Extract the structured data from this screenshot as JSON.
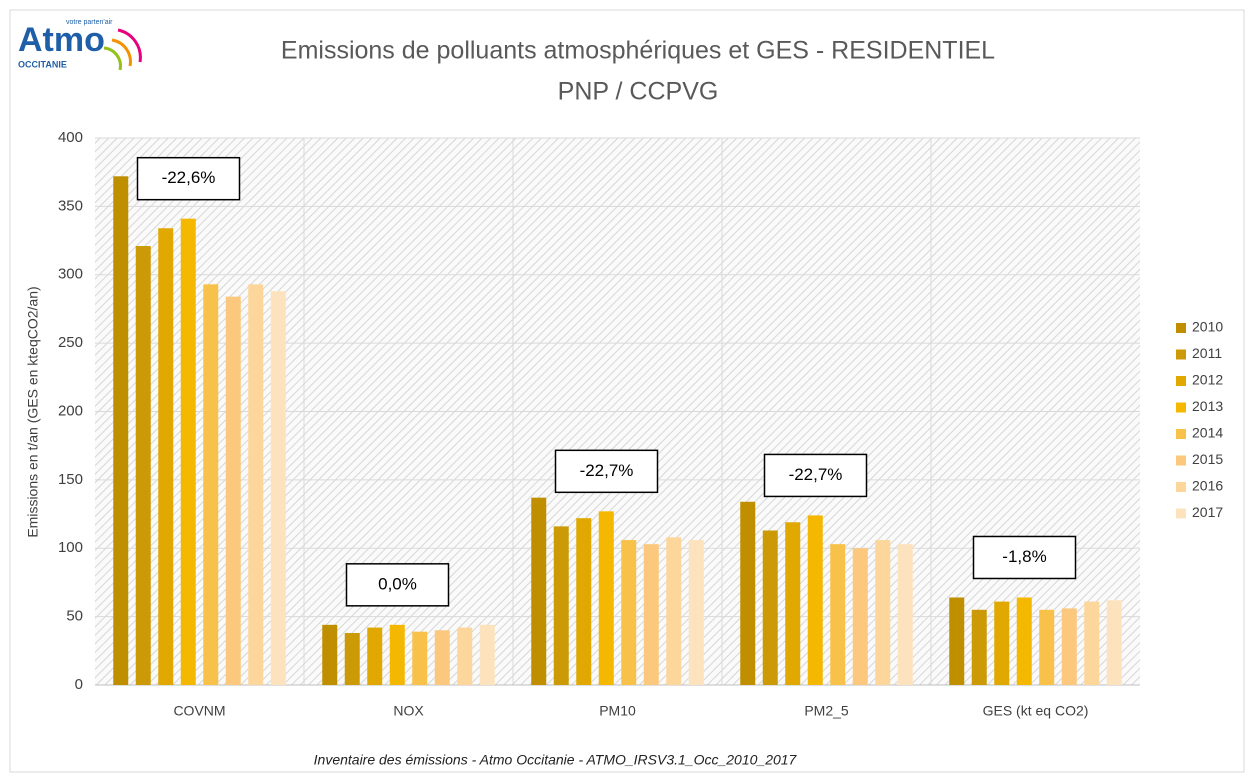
{
  "logo": {
    "name": "Atmo",
    "tagline": "votre parten'air",
    "region": "OCCITANIE"
  },
  "chart_data": {
    "type": "bar",
    "title": "Emissions de polluants atmosphériques et GES - RESIDENTIEL",
    "subtitle": "PNP / CCPVG",
    "y_label": "Emissions en t/an (GES en kteqCO2/an)",
    "source": "Inventaire des émissions - Atmo Occitanie - ATMO_IRSV3.1_Occ_2010_2017",
    "categories": [
      "COVNM",
      "NOX",
      "PM10",
      "PM2_5",
      "GES (kt eq CO2)"
    ],
    "annotations": [
      "-22,6%",
      "0,0%",
      "-22,7%",
      "-22,7%",
      "-1,8%"
    ],
    "series": [
      {
        "name": "2010",
        "color": "#bf8f00",
        "values": [
          372,
          44,
          137,
          134,
          64
        ]
      },
      {
        "name": "2011",
        "color": "#cc9a06",
        "values": [
          321,
          38,
          116,
          113,
          55
        ]
      },
      {
        "name": "2012",
        "color": "#e0a800",
        "values": [
          334,
          42,
          122,
          119,
          61
        ]
      },
      {
        "name": "2013",
        "color": "#f5b800",
        "values": [
          341,
          44,
          127,
          124,
          64
        ]
      },
      {
        "name": "2014",
        "color": "#f8c24a",
        "values": [
          293,
          39,
          106,
          103,
          55
        ]
      },
      {
        "name": "2015",
        "color": "#fbc87d",
        "values": [
          284,
          40,
          103,
          100,
          56
        ]
      },
      {
        "name": "2016",
        "color": "#fdd69b",
        "values": [
          293,
          42,
          108,
          106,
          61
        ]
      },
      {
        "name": "2017",
        "color": "#fde3bd",
        "values": [
          288,
          44,
          106,
          103,
          62
        ]
      }
    ],
    "ylim": [
      0,
      400
    ],
    "yticks": [
      0,
      50,
      100,
      150,
      200,
      250,
      300,
      350,
      400
    ],
    "grid": true,
    "legend": "right"
  }
}
